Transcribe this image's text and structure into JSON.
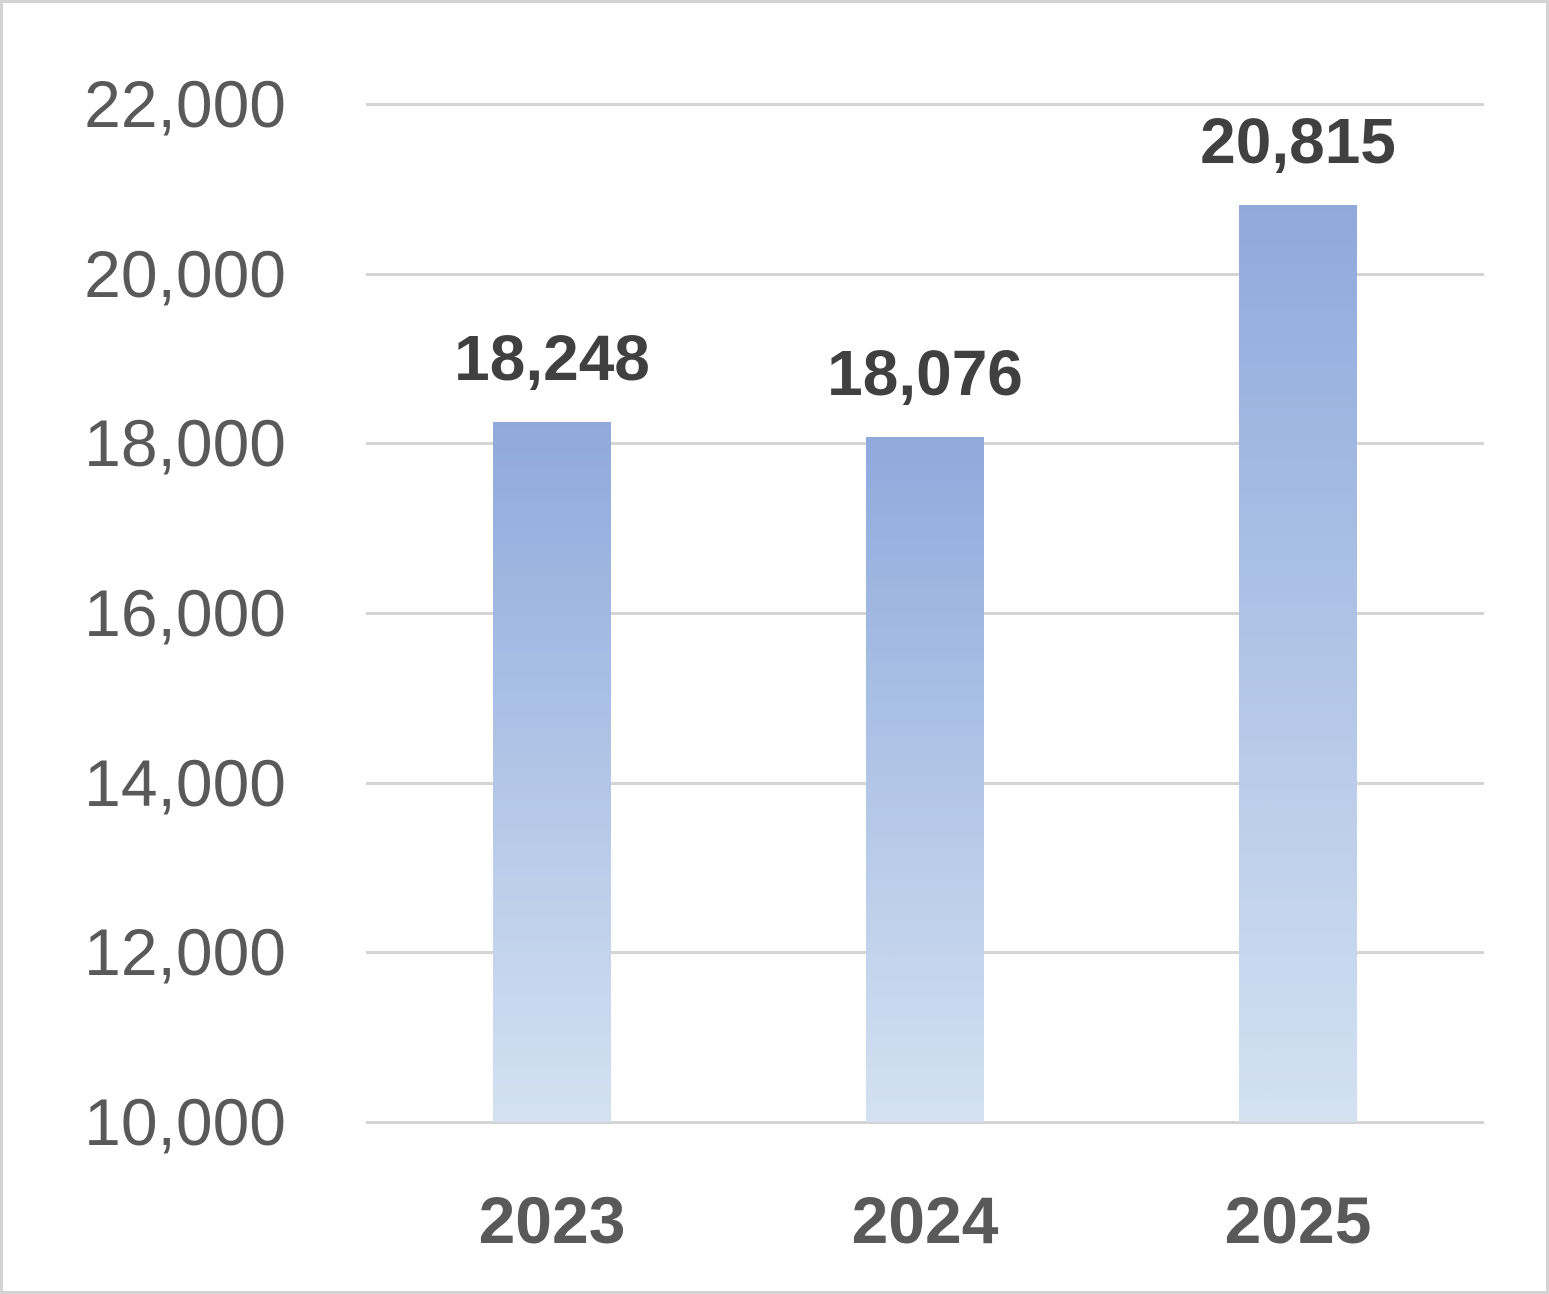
{
  "chart_data": {
    "type": "bar",
    "title": "",
    "xlabel": "",
    "ylabel": "",
    "categories": [
      "2023",
      "2024",
      "2025"
    ],
    "values": [
      18248,
      18076,
      20815
    ],
    "data_labels": [
      "18,248",
      "18,076",
      "20,815"
    ],
    "ylim": [
      10000,
      22000
    ],
    "ytick_step": 2000,
    "ytick_values": [
      22000,
      20000,
      18000,
      16000,
      14000,
      12000,
      10000
    ],
    "ytick_labels": [
      "22,000",
      "20,000",
      "18,000",
      "16,000",
      "14,000",
      "12,000",
      "10,000"
    ],
    "grid": true,
    "legend": false,
    "colors": {
      "bar_gradient_top": "#8FA9DC",
      "bar_gradient_bottom": "#D3E1F1",
      "gridline": "#D4D4D4",
      "ytick_text": "#595959",
      "xtick_text": "#595959",
      "data_label_text": "#404040",
      "background": "#FFFFFF",
      "border": "#D3D3D3"
    }
  }
}
